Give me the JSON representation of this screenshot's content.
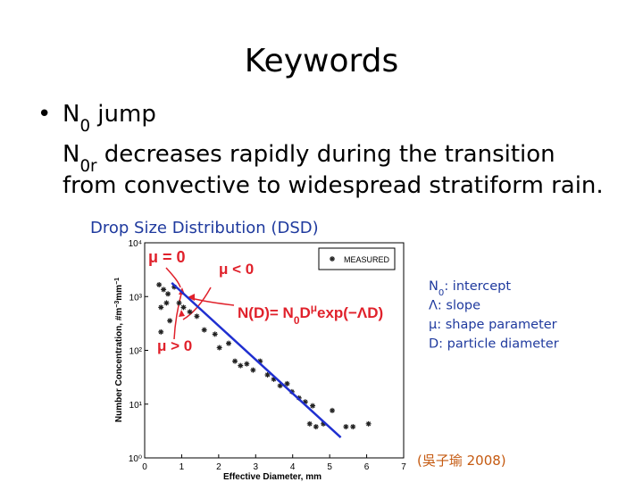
{
  "title": "Keywords",
  "bullet": {
    "symbol": "•",
    "parts": [
      {
        "text": "N"
      },
      {
        "sub": "0"
      },
      {
        "text": " jump"
      }
    ],
    "lines": [
      [
        {
          "text": "N"
        },
        {
          "sub": "0r"
        },
        {
          "text": " decreases rapidly during the transition"
        }
      ],
      [
        {
          "text": "from convective to widespread stratiform rain."
        }
      ]
    ]
  },
  "caption": "Drop Size Distribution (DSD)",
  "definitions": [
    [
      {
        "text": "N"
      },
      {
        "sub": "0"
      },
      {
        "text": ": intercept"
      }
    ],
    [
      {
        "text": "Λ: slope"
      }
    ],
    [
      {
        "text": "μ: shape parameter"
      }
    ],
    [
      {
        "text": "D: particle diameter"
      }
    ]
  ],
  "credit": "(吳子瑜 2008)",
  "figure": {
    "type": "scatter",
    "xlabel": "Effective Diameter, mm",
    "ylabel": [
      {
        "text": "Number Concentration, #m"
      },
      {
        "sup": "−3"
      },
      {
        "text": "mm"
      },
      {
        "sup": "−1"
      }
    ],
    "xlim": [
      0,
      7
    ],
    "xticks": [
      0,
      1,
      2,
      3,
      4,
      5,
      6,
      7
    ],
    "ylim": [
      1,
      10000
    ],
    "log_y": true,
    "yticks": [
      {
        "value": 1,
        "label": "10⁰"
      },
      {
        "value": 10,
        "label": "10¹"
      },
      {
        "value": 100,
        "label": "10²"
      },
      {
        "value": 1000,
        "label": "10³"
      },
      {
        "value": 10000,
        "label": "10⁴"
      }
    ],
    "series": [
      {
        "name": "MEASURED",
        "color": "#222222",
        "x": [
          0.39,
          0.51,
          0.63,
          0.8,
          0.44,
          0.59,
          0.93,
          0.68,
          1.05,
          1.22,
          1.41,
          1.61,
          1.9,
          2.02,
          2.27,
          2.44,
          2.59,
          2.76,
          2.93,
          3.12,
          3.32,
          3.49,
          3.66,
          3.85,
          3.98,
          4.17,
          4.34,
          4.54,
          4.46,
          4.63,
          4.83,
          5.44,
          5.63,
          6.05,
          0.44,
          5.07
        ],
        "values": [
          1660,
          1350,
          1120,
          1510,
          630,
          760,
          760,
          355,
          630,
          520,
          430,
          240,
          200,
          112,
          135,
          63,
          52,
          56,
          43,
          63,
          35,
          29,
          22,
          24,
          17,
          13,
          11,
          9.3,
          4.3,
          3.8,
          4.3,
          3.8,
          3.8,
          4.3,
          220,
          7.6
        ]
      }
    ],
    "fit": {
      "color": "#1f2fd0",
      "x": [
        0.73,
        5.3
      ],
      "values": [
        1800,
        2.4
      ]
    },
    "annotations": [
      {
        "text": [
          {
            "text": "μ = 0"
          }
        ],
        "color": "#e0212b"
      },
      {
        "text": [
          {
            "text": "μ < 0"
          }
        ],
        "color": "#e0212b"
      },
      {
        "text": [
          {
            "text": "N(D)= N"
          },
          {
            "sub": "0"
          },
          {
            "text": "D"
          },
          {
            "sup": "μ"
          },
          {
            "text": "exp(−ΛD)"
          }
        ],
        "color": "#e0212b"
      },
      {
        "text": [
          {
            "text": "μ > 0"
          }
        ],
        "color": "#e0212b"
      }
    ]
  }
}
